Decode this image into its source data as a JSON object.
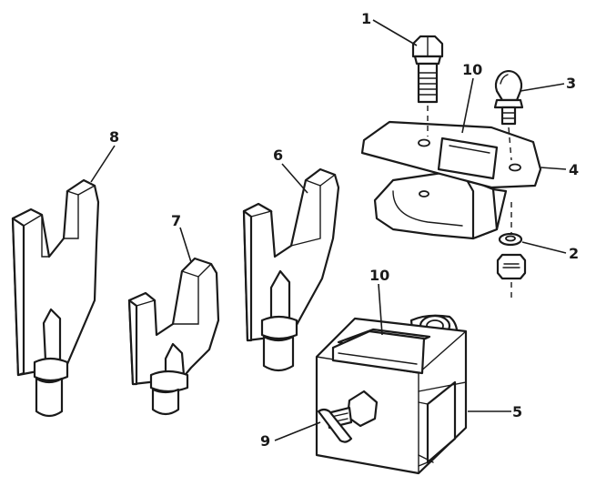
{
  "callouts": {
    "c1": "1",
    "c2": "2",
    "c3": "3",
    "c4": "4",
    "c5": "5",
    "c6": "6",
    "c7": "7",
    "c8": "8",
    "c9": "9",
    "c10a": "10",
    "c10b": "10"
  },
  "colors": {
    "ink": "#1a1a1a",
    "paper": "#ffffff"
  }
}
